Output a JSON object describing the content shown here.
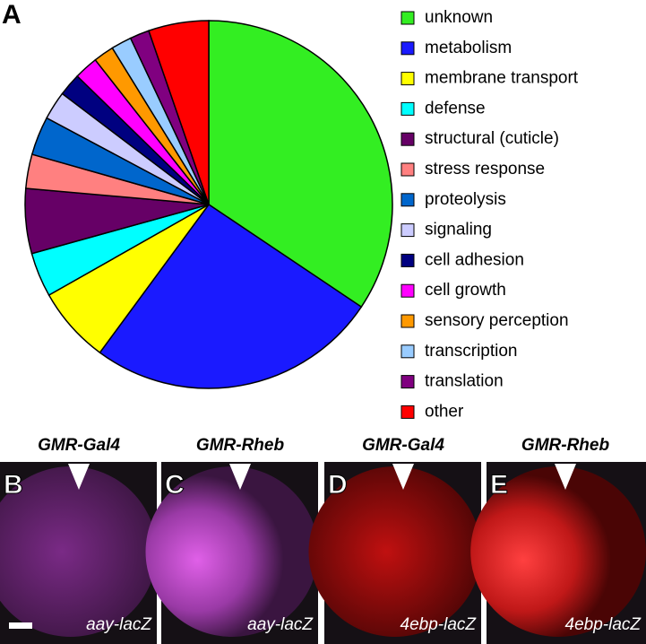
{
  "chart_data": {
    "type": "pie",
    "panel_label": "A",
    "categories": [
      "unknown",
      "metabolism",
      "membrane transport",
      "defense",
      "structural (cuticle)",
      "stress response",
      "proteolysis",
      "signaling",
      "cell adhesion",
      "cell growth",
      "sensory perception",
      "transcription",
      "translation",
      "other"
    ],
    "values": [
      34.4,
      25.7,
      6.7,
      3.9,
      5.7,
      3,
      3.4,
      2.5,
      2,
      2.1,
      1.8,
      1.8,
      1.7,
      5.3
    ],
    "colors": [
      "#33ee22",
      "#1a1aff",
      "#ffff00",
      "#00ffff",
      "#660066",
      "#ff8080",
      "#0066cc",
      "#ccccff",
      "#000080",
      "#ff00ff",
      "#ff9900",
      "#99ccff",
      "#800080",
      "#ff0000"
    ],
    "legend": "right"
  },
  "panels": [
    {
      "label": "B",
      "genotype": "GMR-Gal4",
      "reporter": "aay-lacZ"
    },
    {
      "label": "C",
      "genotype": "GMR-Rheb",
      "reporter": "aay-lacZ"
    },
    {
      "label": "D",
      "genotype": "GMR-Gal4",
      "reporter": "4ebp-lacZ"
    },
    {
      "label": "E",
      "genotype": "GMR-Rheb",
      "reporter": "4ebp-lacZ"
    }
  ]
}
